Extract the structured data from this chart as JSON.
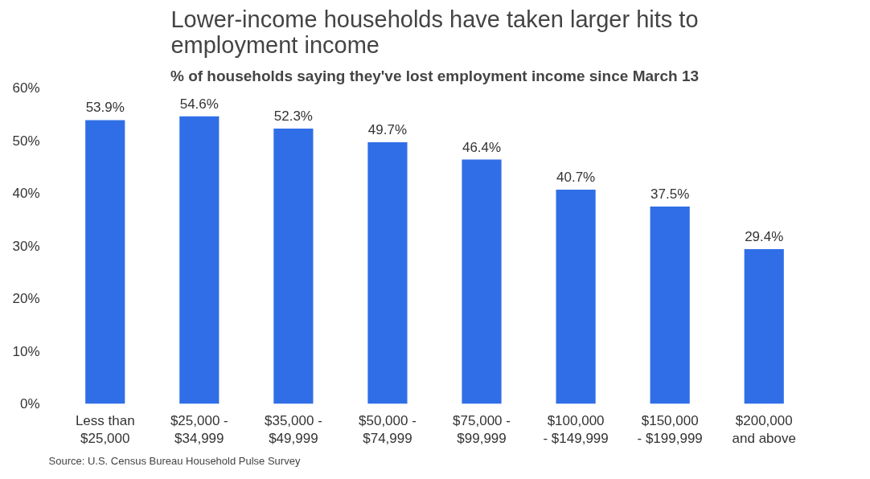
{
  "chart_data": {
    "type": "bar",
    "title": "Lower-income households have taken larger hits to\nemployment income",
    "subtitle": "% of households saying they've lost employment income since March 13",
    "categories": [
      "Less than\n$25,000",
      "$25,000 -\n$34,999",
      "$35,000 -\n$49,999",
      "$50,000 -\n$74,999",
      "$75,000 -\n$99,999",
      "$100,000\n- $149,999",
      "$150,000\n- $199,999",
      "$200,000\nand above"
    ],
    "values": [
      53.9,
      54.6,
      52.3,
      49.7,
      46.4,
      40.7,
      37.5,
      29.4
    ],
    "value_labels": [
      "53.9%",
      "54.6%",
      "52.3%",
      "49.7%",
      "46.4%",
      "40.7%",
      "37.5%",
      "29.4%"
    ],
    "color": "#2f6ee6",
    "ylim": [
      0,
      60
    ],
    "yticks": [
      {
        "value": 0,
        "label": "0%"
      },
      {
        "value": 10,
        "label": "10%"
      },
      {
        "value": 20,
        "label": "20%"
      },
      {
        "value": 30,
        "label": "30%"
      },
      {
        "value": 40,
        "label": "40%"
      },
      {
        "value": 50,
        "label": "50%"
      },
      {
        "value": 60,
        "label": "60%"
      }
    ],
    "grid": false,
    "annotations": [
      "Source: U.S. Census Bureau Household Pulse Survey"
    ]
  }
}
